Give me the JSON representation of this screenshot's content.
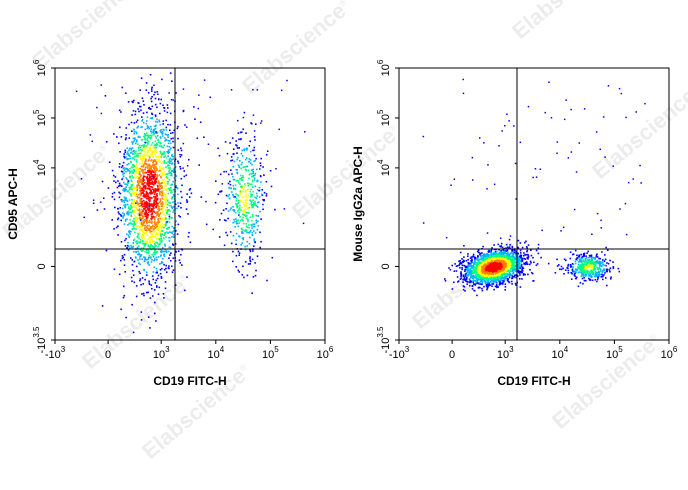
{
  "watermark_text": "Elabscience",
  "watermark_mark": "®",
  "chart_data": [
    {
      "type": "scatter",
      "subtype": "flow-cytometry-density-dot-plot",
      "xlabel": "CD19 FITC-H",
      "ylabel": "CD95 APC-H",
      "x_scale": "biexponential",
      "y_scale": "biexponential",
      "xlim": [
        -1000,
        1000000
      ],
      "ylim": [
        -3162,
        1000000
      ],
      "x_ticks": [
        {
          "base": "-10",
          "exp": "3",
          "value": -1000
        },
        {
          "base": "0",
          "exp": "",
          "value": 0
        },
        {
          "base": "10",
          "exp": "3",
          "value": 1000
        },
        {
          "base": "10",
          "exp": "4",
          "value": 10000
        },
        {
          "base": "10",
          "exp": "5",
          "value": 100000
        },
        {
          "base": "10",
          "exp": "6",
          "value": 1000000
        }
      ],
      "y_ticks": [
        {
          "base": "-10",
          "exp": "3.5",
          "value": -3162
        },
        {
          "base": "0",
          "exp": "",
          "value": 0
        },
        {
          "base": "10",
          "exp": "4",
          "value": 10000
        },
        {
          "base": "10",
          "exp": "5",
          "value": 100000
        },
        {
          "base": "10",
          "exp": "6",
          "value": 1000000
        }
      ],
      "quadrant_gate": {
        "x": 3000,
        "y": 2500
      },
      "populations": [
        {
          "x_center": 600,
          "y_center": 3000,
          "density": "high",
          "share": 0.82
        },
        {
          "x_center": 33000,
          "y_center": 2500,
          "density": "medium",
          "share": 0.18
        }
      ],
      "color_scale": [
        "#0000ff",
        "#00b4ff",
        "#00ff80",
        "#ffff00",
        "#ff8000",
        "#ff0000"
      ]
    },
    {
      "type": "scatter",
      "subtype": "flow-cytometry-density-dot-plot",
      "xlabel": "CD19 FITC-H",
      "ylabel": "Mouse IgG2a APC-H",
      "x_scale": "biexponential",
      "y_scale": "biexponential",
      "xlim": [
        -1000,
        1000000
      ],
      "ylim": [
        -3162,
        1000000
      ],
      "x_ticks": [
        {
          "base": "-10",
          "exp": "3",
          "value": -1000
        },
        {
          "base": "0",
          "exp": "",
          "value": 0
        },
        {
          "base": "10",
          "exp": "3",
          "value": 1000
        },
        {
          "base": "10",
          "exp": "4",
          "value": 10000
        },
        {
          "base": "10",
          "exp": "5",
          "value": 100000
        },
        {
          "base": "10",
          "exp": "6",
          "value": 1000000
        }
      ],
      "y_ticks": [
        {
          "base": "-10",
          "exp": "3.5",
          "value": -3162
        },
        {
          "base": "0",
          "exp": "",
          "value": 0
        },
        {
          "base": "10",
          "exp": "4",
          "value": 10000
        },
        {
          "base": "10",
          "exp": "5",
          "value": 100000
        },
        {
          "base": "10",
          "exp": "6",
          "value": 1000000
        }
      ],
      "quadrant_gate": {
        "x": 3000,
        "y": 2500
      },
      "populations": [
        {
          "x_center": 600,
          "y_center": 0,
          "density": "high",
          "share": 0.83
        },
        {
          "x_center": 33000,
          "y_center": 0,
          "density": "medium",
          "share": 0.17
        }
      ],
      "color_scale": [
        "#0000ff",
        "#00b4ff",
        "#00ff80",
        "#ffff00",
        "#ff8000",
        "#ff0000"
      ]
    }
  ]
}
